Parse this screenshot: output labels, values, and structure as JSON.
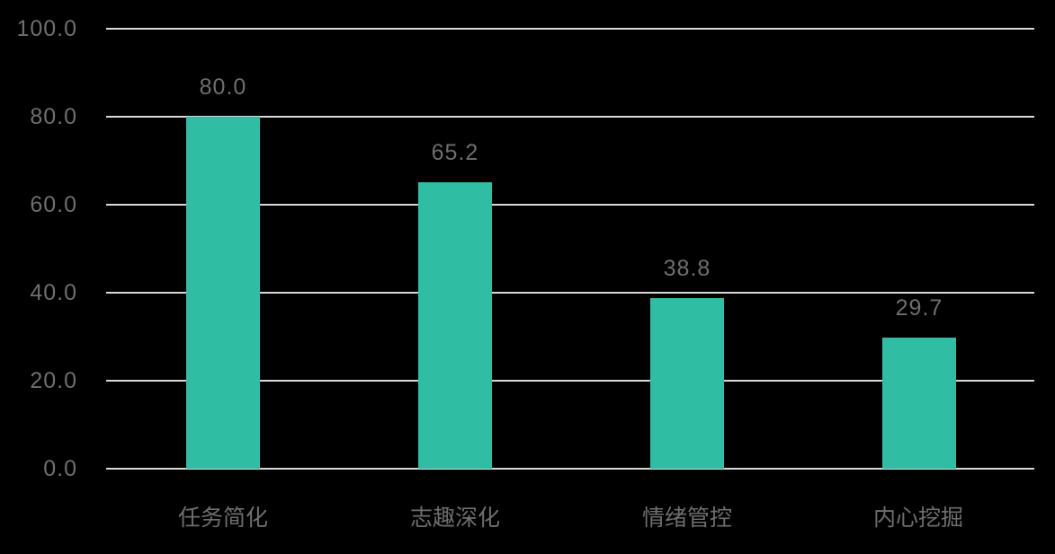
{
  "chart_data": {
    "type": "bar",
    "title": "",
    "xlabel": "",
    "ylabel": "",
    "categories": [
      "任务简化",
      "志趣深化",
      "情绪管控",
      "内心挖掘"
    ],
    "values": [
      80.0,
      65.2,
      38.8,
      29.7
    ],
    "value_labels": [
      "80.0",
      "65.2",
      "38.8",
      "29.7"
    ],
    "yticks": [
      "100.0",
      "80.0",
      "60.0",
      "40.0",
      "20.0",
      "0.0"
    ],
    "ylim": [
      0,
      100
    ],
    "grid": true,
    "legend": false,
    "colors": {
      "background": "#000000",
      "bar": "#2FBEA4",
      "gridline": "#D9D9D9",
      "text": "#6E6E6E"
    }
  }
}
